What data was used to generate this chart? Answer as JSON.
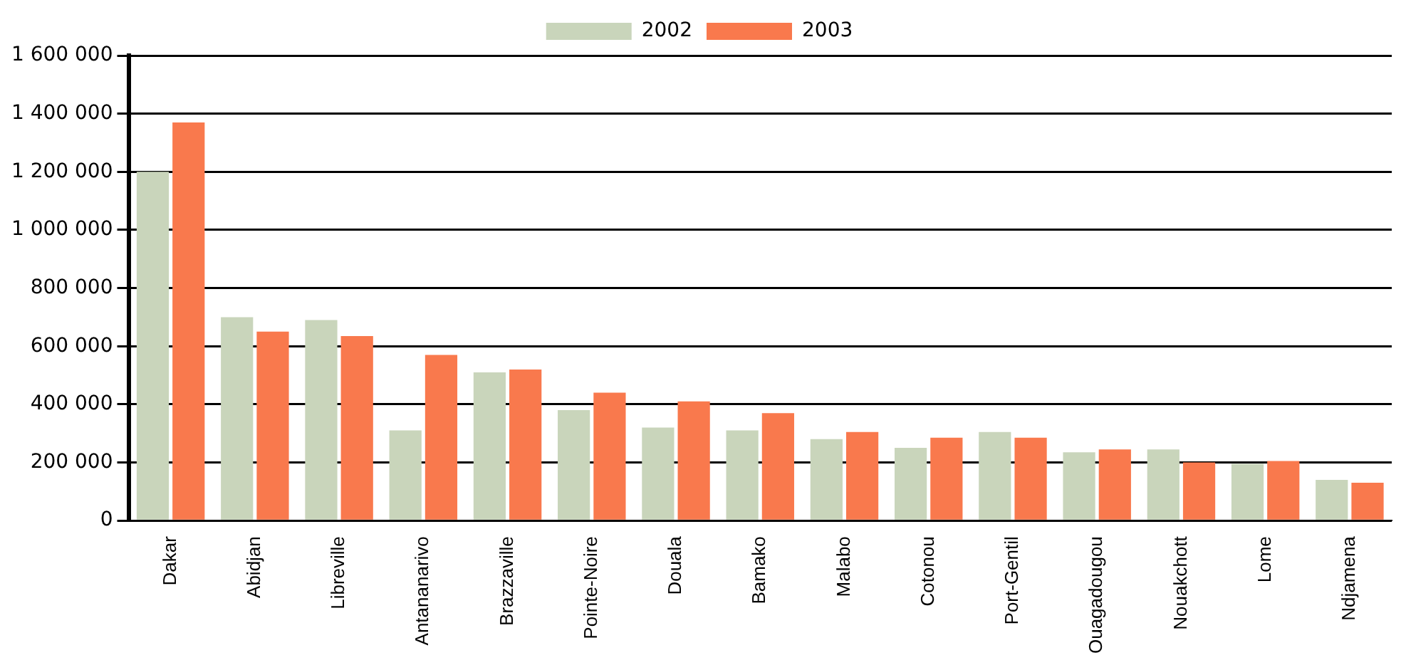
{
  "chart_data": {
    "type": "bar",
    "categories": [
      "Dakar",
      "Abidjan",
      "Libreville",
      "Antananarivo",
      "Brazzaville",
      "Pointe-Noire",
      "Douala",
      "Bamako",
      "Malabo",
      "Cotonou",
      "Port-Gentil",
      "Ouagadougou",
      "Nouakchott",
      "Lome",
      "Ndjamena"
    ],
    "series": [
      {
        "name": "2002",
        "color": "#c9d5bb",
        "values": [
          1200000,
          700000,
          690000,
          310000,
          510000,
          380000,
          320000,
          310000,
          280000,
          250000,
          305000,
          235000,
          245000,
          195000,
          140000
        ]
      },
      {
        "name": "2003",
        "color": "#f9794d",
        "values": [
          1370000,
          650000,
          635000,
          570000,
          520000,
          440000,
          410000,
          370000,
          305000,
          285000,
          285000,
          245000,
          200000,
          205000,
          130000
        ]
      }
    ],
    "ylim": [
      0,
      1600000
    ],
    "yticks": [
      {
        "value": 0,
        "label": "0"
      },
      {
        "value": 200000,
        "label": "200 000"
      },
      {
        "value": 400000,
        "label": "400 000"
      },
      {
        "value": 600000,
        "label": "600 000"
      },
      {
        "value": 800000,
        "label": "800 000"
      },
      {
        "value": 1000000,
        "label": "1 000 000"
      },
      {
        "value": 1200000,
        "label": "1 200 000"
      },
      {
        "value": 1400000,
        "label": "1 400 000"
      },
      {
        "value": 1600000,
        "label": "1 600 000"
      }
    ],
    "grid": "y",
    "legend": "top"
  }
}
